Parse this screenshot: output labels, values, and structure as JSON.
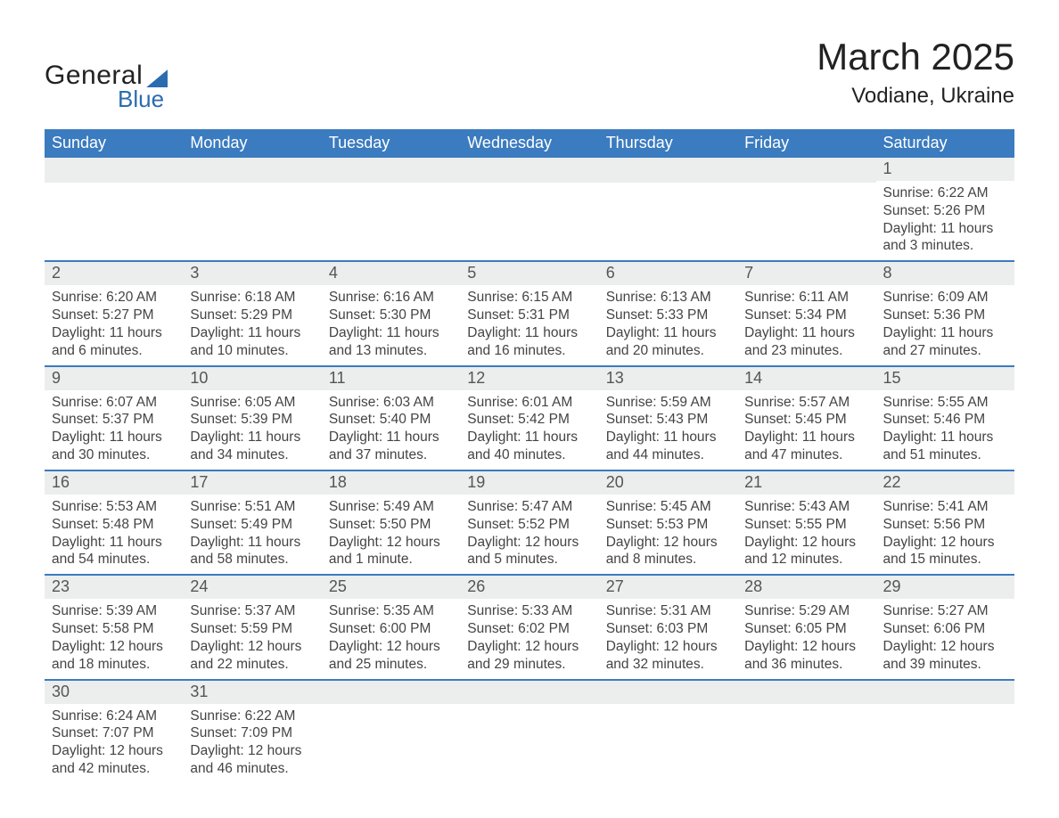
{
  "logo": {
    "word1": "General",
    "word2": "Blue"
  },
  "title": "March 2025",
  "location": "Vodiane, Ukraine",
  "colors": {
    "header_bg": "#3b7bbf",
    "header_text": "#ffffff",
    "daynum_bg": "#eceded",
    "border": "#3b7bbf",
    "text": "#444444",
    "logo_blue": "#2b6cb0"
  },
  "weekdays": [
    "Sunday",
    "Monday",
    "Tuesday",
    "Wednesday",
    "Thursday",
    "Friday",
    "Saturday"
  ],
  "weeks": [
    [
      null,
      null,
      null,
      null,
      null,
      null,
      {
        "n": "1",
        "sr": "6:22 AM",
        "ss": "5:26 PM",
        "dl": "11 hours and 3 minutes."
      }
    ],
    [
      {
        "n": "2",
        "sr": "6:20 AM",
        "ss": "5:27 PM",
        "dl": "11 hours and 6 minutes."
      },
      {
        "n": "3",
        "sr": "6:18 AM",
        "ss": "5:29 PM",
        "dl": "11 hours and 10 minutes."
      },
      {
        "n": "4",
        "sr": "6:16 AM",
        "ss": "5:30 PM",
        "dl": "11 hours and 13 minutes."
      },
      {
        "n": "5",
        "sr": "6:15 AM",
        "ss": "5:31 PM",
        "dl": "11 hours and 16 minutes."
      },
      {
        "n": "6",
        "sr": "6:13 AM",
        "ss": "5:33 PM",
        "dl": "11 hours and 20 minutes."
      },
      {
        "n": "7",
        "sr": "6:11 AM",
        "ss": "5:34 PM",
        "dl": "11 hours and 23 minutes."
      },
      {
        "n": "8",
        "sr": "6:09 AM",
        "ss": "5:36 PM",
        "dl": "11 hours and 27 minutes."
      }
    ],
    [
      {
        "n": "9",
        "sr": "6:07 AM",
        "ss": "5:37 PM",
        "dl": "11 hours and 30 minutes."
      },
      {
        "n": "10",
        "sr": "6:05 AM",
        "ss": "5:39 PM",
        "dl": "11 hours and 34 minutes."
      },
      {
        "n": "11",
        "sr": "6:03 AM",
        "ss": "5:40 PM",
        "dl": "11 hours and 37 minutes."
      },
      {
        "n": "12",
        "sr": "6:01 AM",
        "ss": "5:42 PM",
        "dl": "11 hours and 40 minutes."
      },
      {
        "n": "13",
        "sr": "5:59 AM",
        "ss": "5:43 PM",
        "dl": "11 hours and 44 minutes."
      },
      {
        "n": "14",
        "sr": "5:57 AM",
        "ss": "5:45 PM",
        "dl": "11 hours and 47 minutes."
      },
      {
        "n": "15",
        "sr": "5:55 AM",
        "ss": "5:46 PM",
        "dl": "11 hours and 51 minutes."
      }
    ],
    [
      {
        "n": "16",
        "sr": "5:53 AM",
        "ss": "5:48 PM",
        "dl": "11 hours and 54 minutes."
      },
      {
        "n": "17",
        "sr": "5:51 AM",
        "ss": "5:49 PM",
        "dl": "11 hours and 58 minutes."
      },
      {
        "n": "18",
        "sr": "5:49 AM",
        "ss": "5:50 PM",
        "dl": "12 hours and 1 minute."
      },
      {
        "n": "19",
        "sr": "5:47 AM",
        "ss": "5:52 PM",
        "dl": "12 hours and 5 minutes."
      },
      {
        "n": "20",
        "sr": "5:45 AM",
        "ss": "5:53 PM",
        "dl": "12 hours and 8 minutes."
      },
      {
        "n": "21",
        "sr": "5:43 AM",
        "ss": "5:55 PM",
        "dl": "12 hours and 12 minutes."
      },
      {
        "n": "22",
        "sr": "5:41 AM",
        "ss": "5:56 PM",
        "dl": "12 hours and 15 minutes."
      }
    ],
    [
      {
        "n": "23",
        "sr": "5:39 AM",
        "ss": "5:58 PM",
        "dl": "12 hours and 18 minutes."
      },
      {
        "n": "24",
        "sr": "5:37 AM",
        "ss": "5:59 PM",
        "dl": "12 hours and 22 minutes."
      },
      {
        "n": "25",
        "sr": "5:35 AM",
        "ss": "6:00 PM",
        "dl": "12 hours and 25 minutes."
      },
      {
        "n": "26",
        "sr": "5:33 AM",
        "ss": "6:02 PM",
        "dl": "12 hours and 29 minutes."
      },
      {
        "n": "27",
        "sr": "5:31 AM",
        "ss": "6:03 PM",
        "dl": "12 hours and 32 minutes."
      },
      {
        "n": "28",
        "sr": "5:29 AM",
        "ss": "6:05 PM",
        "dl": "12 hours and 36 minutes."
      },
      {
        "n": "29",
        "sr": "5:27 AM",
        "ss": "6:06 PM",
        "dl": "12 hours and 39 minutes."
      }
    ],
    [
      {
        "n": "30",
        "sr": "6:24 AM",
        "ss": "7:07 PM",
        "dl": "12 hours and 42 minutes."
      },
      {
        "n": "31",
        "sr": "6:22 AM",
        "ss": "7:09 PM",
        "dl": "12 hours and 46 minutes."
      },
      null,
      null,
      null,
      null,
      null
    ]
  ],
  "labels": {
    "sunrise": "Sunrise:",
    "sunset": "Sunset:",
    "daylight": "Daylight:"
  }
}
